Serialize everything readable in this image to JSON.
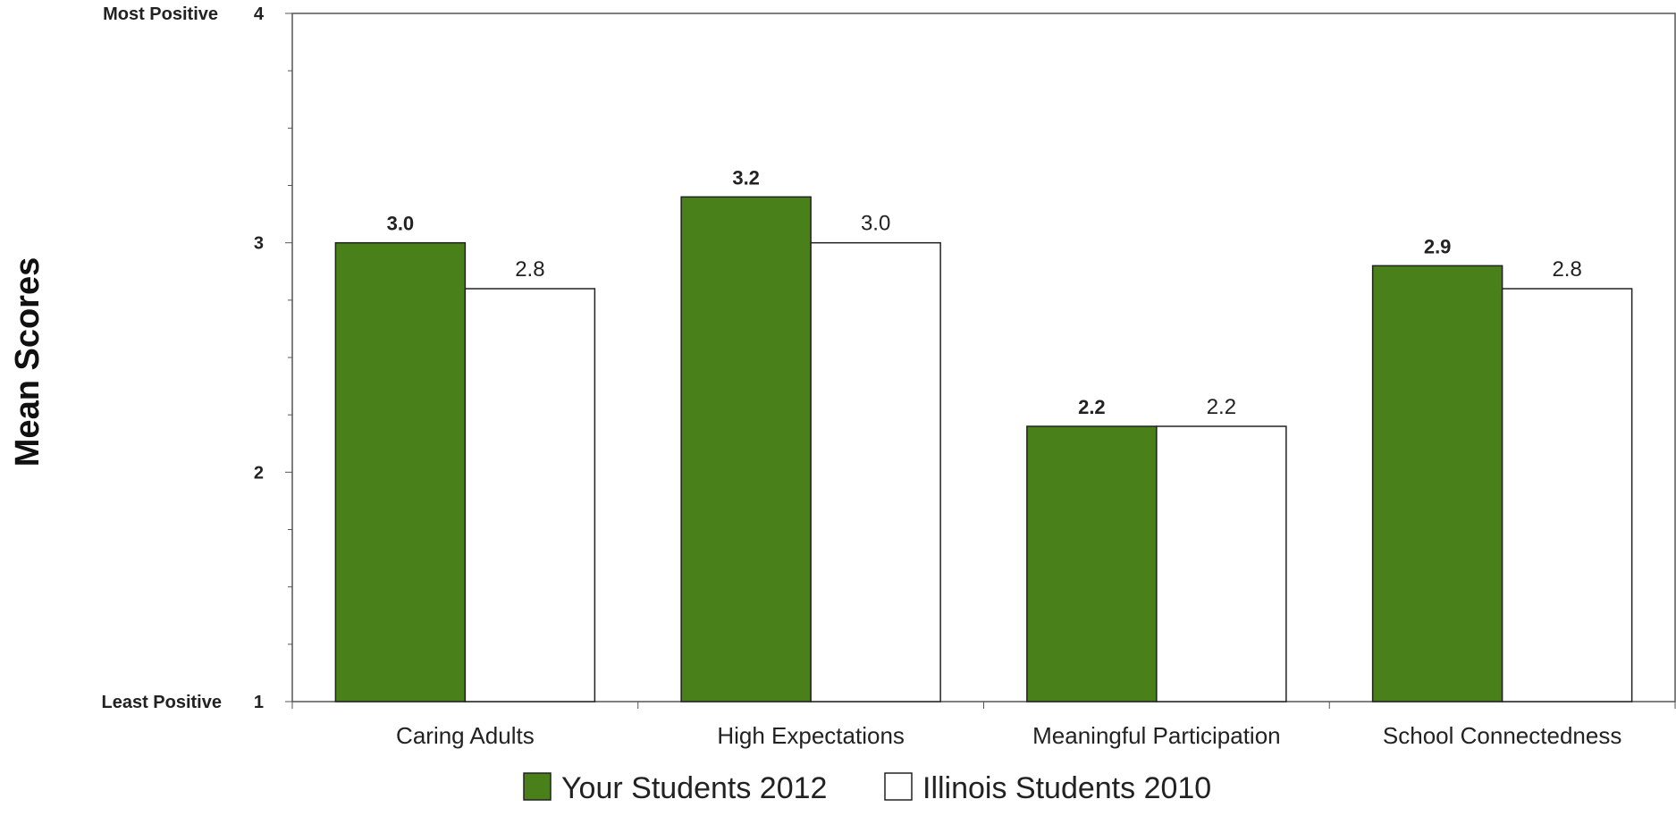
{
  "chart_data": {
    "type": "bar",
    "ylabel": "Mean Scores",
    "ylim": [
      1,
      4
    ],
    "yticks": [
      1,
      2,
      3,
      4
    ],
    "y_anchor_labels": {
      "top": "Most Positive",
      "bottom": "Least Positive"
    },
    "categories": [
      "Caring Adults",
      "High Expectations",
      "Meaningful Participation",
      "School Connectedness"
    ],
    "series": [
      {
        "name": "Your Students 2012",
        "values": [
          3.0,
          3.2,
          2.2,
          2.9
        ],
        "color": "#4a8019",
        "label_style": "bold"
      },
      {
        "name": "Illinois Students 2010",
        "values": [
          2.8,
          3.0,
          2.2,
          2.8
        ],
        "color": "#ffffff",
        "label_style": "normal"
      }
    ],
    "value_labels": [
      [
        "3.0",
        "3.2",
        "2.2",
        "2.9"
      ],
      [
        "2.8",
        "3.0",
        "2.2",
        "2.8"
      ]
    ],
    "legend_position": "bottom",
    "grid": false
  }
}
